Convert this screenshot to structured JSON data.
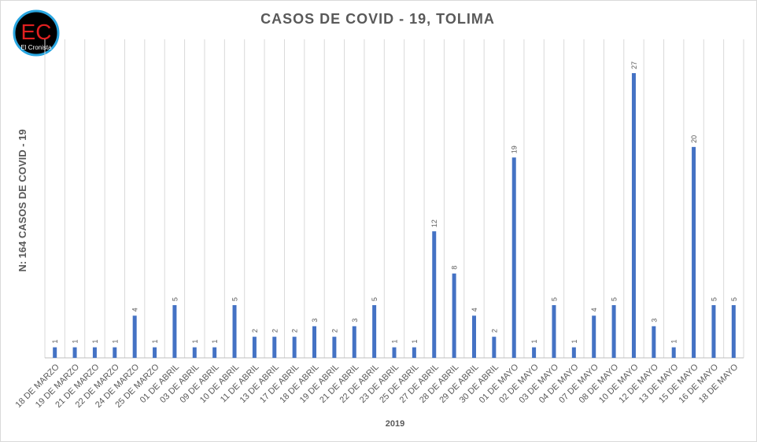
{
  "logo": {
    "initials": "EC",
    "name": "El Cronista"
  },
  "chart_data": {
    "type": "bar",
    "title": "CASOS DE COVID - 19, TOLIMA",
    "x_label": "2019",
    "y_label": "N: 164 CASOS DE COVID - 19",
    "categories": [
      "18 DE MARZO",
      "19 DE MARZO",
      "21 DE MARZO",
      "22 DE MARZO",
      "24 DE MARZO",
      "25 DE MARZO",
      "01 DE ABRIL",
      "03 DE ABRIL",
      "09 DE ABRIL",
      "10 DE ABRIL",
      "11 DE ABRIL",
      "13 DE ABRIL",
      "17 DE ABRIL",
      "18 DE ABRIL",
      "19 DE ABRIL",
      "21 DE ABRIL",
      "22 DE ABRIL",
      "23 DE ABRIL",
      "25 DE ABRIL",
      "27 DE ABRIL",
      "28 DE ABRIL",
      "29 DE ABRIL",
      "30 DE ABRIL",
      "01 DE MAYO",
      "02 DE MAYO",
      "03 DE MAYO",
      "04 DE MAYO",
      "07 DE MAYO",
      "08 DE MAYO",
      "10 DE MAYO",
      "12 DE MAYO",
      "13 DE MAYO",
      "15 DE MAYO",
      "16 DE MAYO",
      "18 DE MAYO"
    ],
    "values": [
      1,
      1,
      1,
      1,
      4,
      1,
      5,
      1,
      1,
      5,
      2,
      2,
      2,
      3,
      2,
      3,
      5,
      1,
      1,
      12,
      8,
      4,
      2,
      19,
      1,
      5,
      1,
      4,
      5,
      27,
      3,
      1,
      20,
      5,
      5
    ],
    "color": "#4472c4",
    "data_labels": true,
    "grid": true
  }
}
